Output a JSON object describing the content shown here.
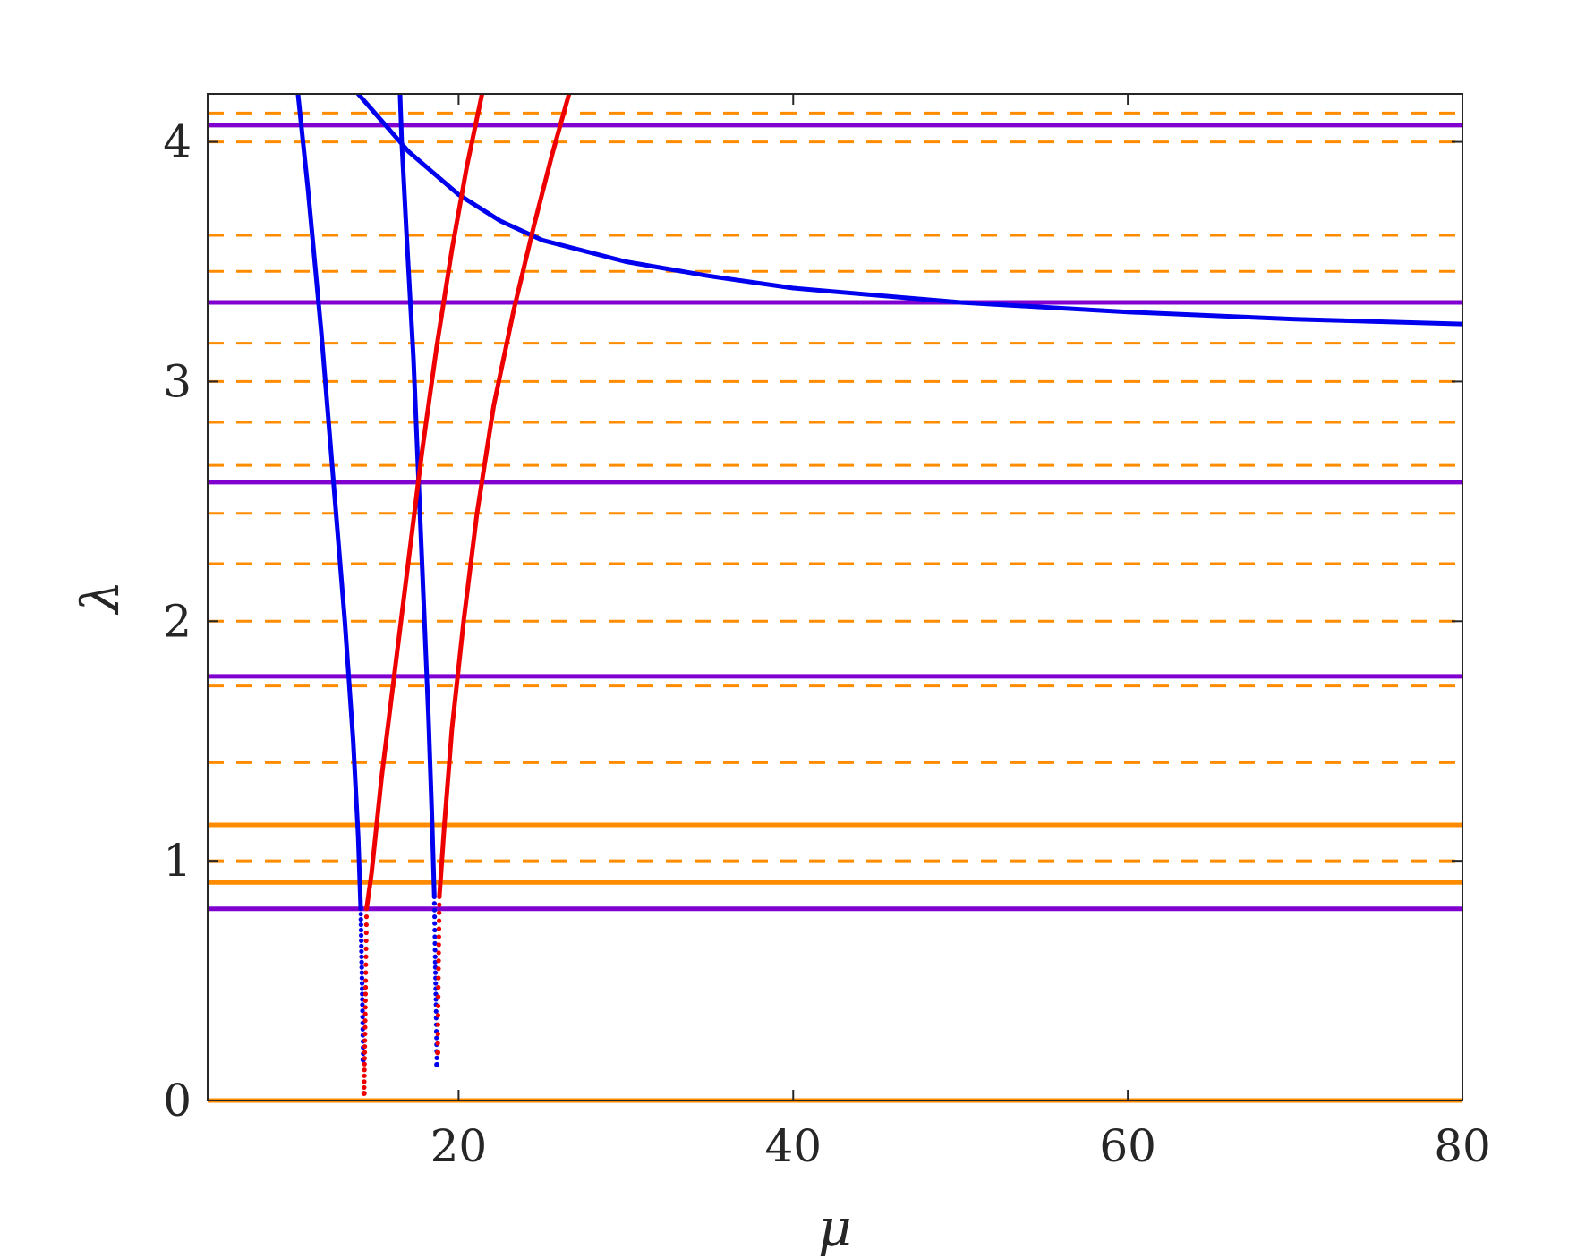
{
  "chart_data": {
    "type": "line",
    "xlabel": "μ",
    "ylabel": "λ",
    "xlim": [
      5,
      80
    ],
    "ylim": [
      0,
      4.2
    ],
    "x_ticks": [
      20,
      40,
      60,
      80
    ],
    "y_ticks": [
      0,
      1,
      2,
      3,
      4
    ],
    "x_tick_labels": [
      "20",
      "40",
      "60",
      "80"
    ],
    "y_tick_labels": [
      "0",
      "1",
      "2",
      "3",
      "4"
    ],
    "grid": false,
    "box": true,
    "colors": {
      "blue": "#0000ee",
      "red": "#ee0000",
      "purple": "#8000d0",
      "orange": "#ff8c00"
    },
    "hlines": {
      "purple_solid": [
        0.8,
        1.77,
        2.58,
        3.33,
        4.07
      ],
      "orange_solid": [
        0.0,
        0.91,
        1.15
      ],
      "orange_dashed": [
        1.0,
        1.41,
        1.73,
        2.0,
        2.24,
        2.45,
        2.65,
        2.83,
        3.0,
        3.16,
        3.46,
        3.61,
        4.0,
        4.12
      ]
    },
    "series": [
      {
        "color": "#0000ee",
        "style": "solid",
        "x": [
          10.4,
          11.0,
          11.8,
          12.5,
          13.2,
          13.7,
          14.0,
          14.15
        ],
        "y": [
          4.2,
          3.8,
          3.2,
          2.6,
          2.0,
          1.5,
          1.1,
          0.8
        ]
      },
      {
        "color": "#0000ee",
        "style": "dotted",
        "x": [
          14.15,
          14.2,
          14.25,
          14.3
        ],
        "y": [
          0.8,
          0.6,
          0.4,
          0.17
        ]
      },
      {
        "color": "#0000ee",
        "style": "solid",
        "x": [
          16.5,
          16.6,
          16.9,
          17.3,
          17.6,
          17.9,
          18.2,
          18.4,
          18.55
        ],
        "y": [
          4.2,
          4.0,
          3.6,
          3.1,
          2.6,
          2.1,
          1.6,
          1.2,
          0.85
        ]
      },
      {
        "color": "#0000ee",
        "style": "dotted",
        "x": [
          18.55,
          18.6,
          18.65,
          18.7
        ],
        "y": [
          0.85,
          0.6,
          0.4,
          0.15
        ]
      },
      {
        "color": "#0000ee",
        "style": "solid",
        "x": [
          14.0,
          15.0,
          16.0,
          17.0,
          18.0,
          20.0,
          22.5,
          25.0,
          30.0,
          35.0,
          40.0,
          50.0,
          60.0,
          70.0,
          80.0
        ],
        "y": [
          4.2,
          4.12,
          4.04,
          3.96,
          3.9,
          3.78,
          3.67,
          3.59,
          3.5,
          3.44,
          3.39,
          3.33,
          3.29,
          3.26,
          3.24
        ]
      },
      {
        "color": "#ee0000",
        "style": "solid",
        "x": [
          21.4,
          20.5,
          19.6,
          18.7,
          17.8,
          17.0,
          16.2,
          15.4,
          14.8,
          14.5
        ],
        "y": [
          4.2,
          3.9,
          3.55,
          3.15,
          2.7,
          2.25,
          1.8,
          1.35,
          0.95,
          0.8
        ]
      },
      {
        "color": "#ee0000",
        "style": "dotted",
        "x": [
          14.5,
          14.45,
          14.4,
          14.35
        ],
        "y": [
          0.8,
          0.5,
          0.25,
          0.03
        ]
      },
      {
        "color": "#ee0000",
        "style": "solid",
        "x": [
          26.6,
          25.6,
          24.5,
          23.3,
          22.1,
          21.1,
          20.3,
          19.6,
          19.15,
          18.85
        ],
        "y": [
          4.2,
          3.95,
          3.65,
          3.3,
          2.9,
          2.45,
          2.0,
          1.55,
          1.15,
          0.85
        ]
      },
      {
        "color": "#ee0000",
        "style": "dotted",
        "x": [
          18.85,
          18.8,
          18.75
        ],
        "y": [
          0.85,
          0.55,
          0.2
        ]
      }
    ]
  }
}
